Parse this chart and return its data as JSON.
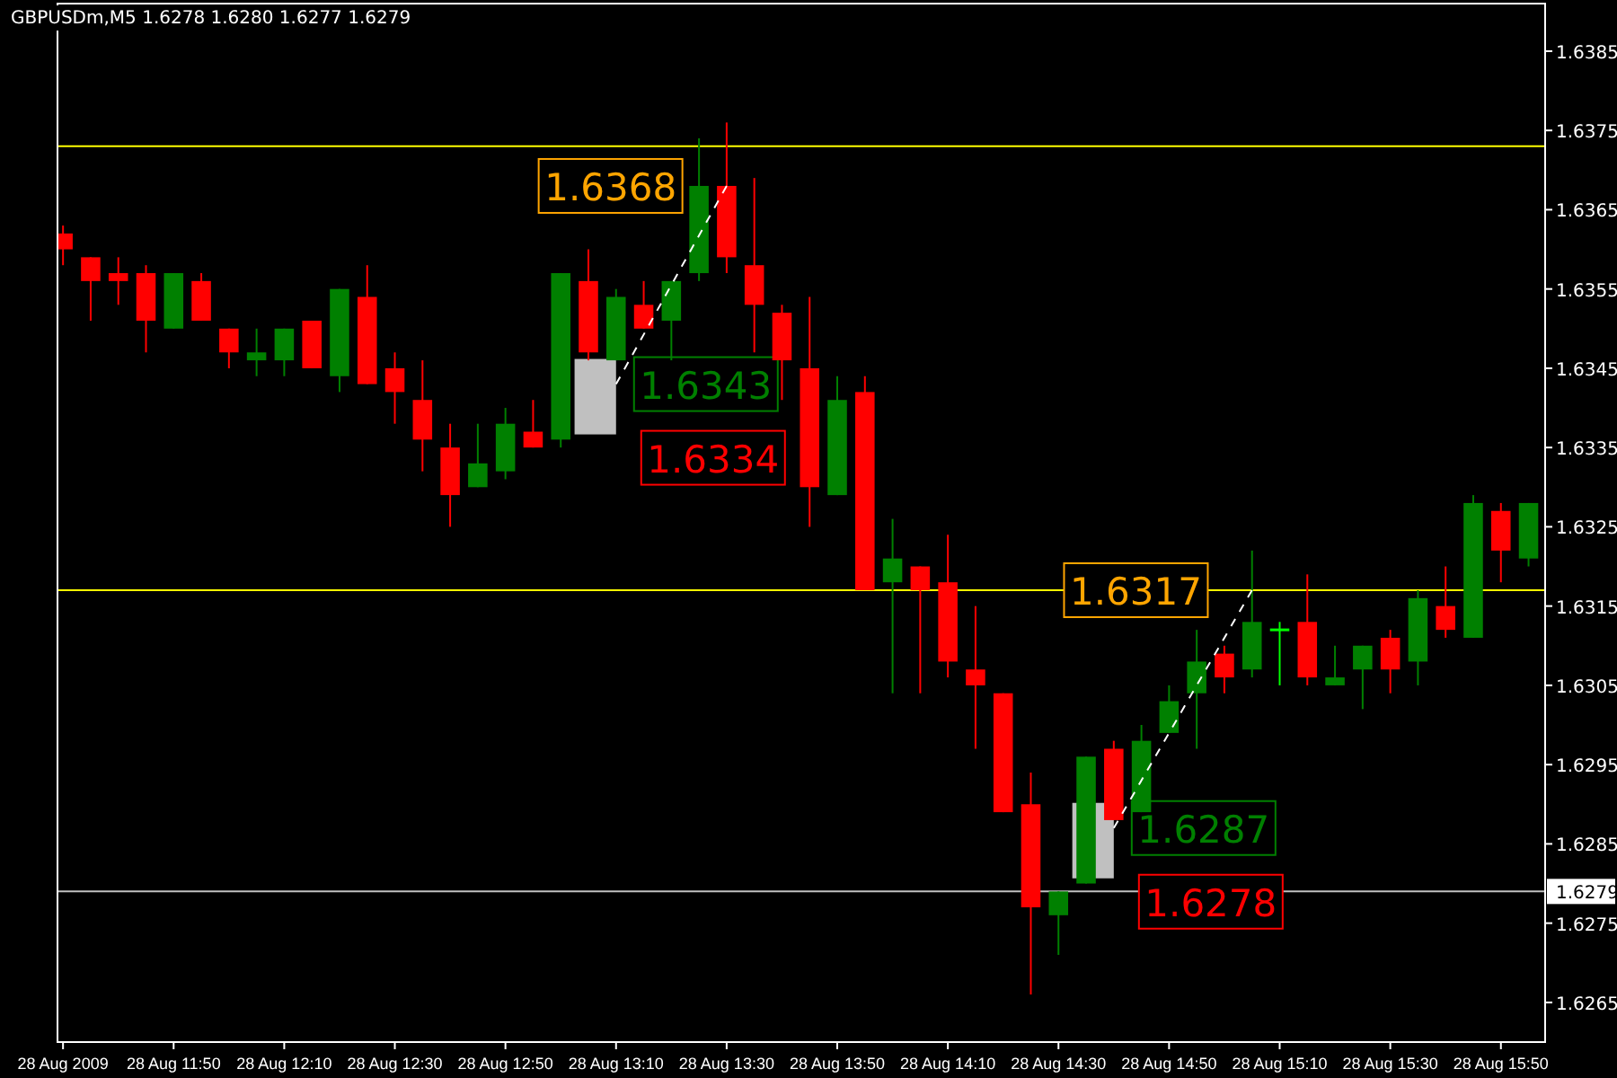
{
  "chart_data": {
    "type": "candlestick",
    "title": "GBPUSDm,M5  1.6278 1.6280 1.6277 1.6279",
    "x": [
      "2009-08-28T11:30",
      "2009-08-28T11:35",
      "2009-08-28T11:40",
      "2009-08-28T11:45",
      "2009-08-28T11:50",
      "2009-08-28T11:55",
      "2009-08-28T12:00",
      "2009-08-28T12:05",
      "2009-08-28T12:10",
      "2009-08-28T12:15",
      "2009-08-28T12:20",
      "2009-08-28T12:25",
      "2009-08-28T12:30",
      "2009-08-28T12:35",
      "2009-08-28T12:40",
      "2009-08-28T12:45",
      "2009-08-28T12:50",
      "2009-08-28T12:55",
      "2009-08-28T13:00",
      "2009-08-28T13:05",
      "2009-08-28T13:10",
      "2009-08-28T13:15",
      "2009-08-28T13:20",
      "2009-08-28T13:25",
      "2009-08-28T13:30",
      "2009-08-28T13:35",
      "2009-08-28T13:40",
      "2009-08-28T13:45",
      "2009-08-28T13:50",
      "2009-08-28T13:55",
      "2009-08-28T14:00",
      "2009-08-28T14:05",
      "2009-08-28T14:10",
      "2009-08-28T14:15",
      "2009-08-28T14:20",
      "2009-08-28T14:25",
      "2009-08-28T14:30",
      "2009-08-28T14:35",
      "2009-08-28T14:40",
      "2009-08-28T14:45",
      "2009-08-28T14:50",
      "2009-08-28T14:55",
      "2009-08-28T15:00",
      "2009-08-28T15:05",
      "2009-08-28T15:10",
      "2009-08-28T15:15",
      "2009-08-28T15:20",
      "2009-08-28T15:25",
      "2009-08-28T15:30",
      "2009-08-28T15:35",
      "2009-08-28T15:40",
      "2009-08-28T15:45",
      "2009-08-28T15:50",
      "2009-08-28T15:55"
    ],
    "ohlc": [
      [
        1.6362,
        1.6363,
        1.6358,
        1.636
      ],
      [
        1.6359,
        1.6359,
        1.6351,
        1.6356
      ],
      [
        1.6357,
        1.6359,
        1.6353,
        1.6356
      ],
      [
        1.6357,
        1.6358,
        1.6347,
        1.6351
      ],
      [
        1.635,
        1.6357,
        1.635,
        1.6357
      ],
      [
        1.6356,
        1.6357,
        1.6351,
        1.6351
      ],
      [
        1.635,
        1.635,
        1.6345,
        1.6347
      ],
      [
        1.6346,
        1.635,
        1.6344,
        1.6347
      ],
      [
        1.6346,
        1.635,
        1.6344,
        1.635
      ],
      [
        1.6351,
        1.6351,
        1.6345,
        1.6345
      ],
      [
        1.6344,
        1.6355,
        1.6342,
        1.6355
      ],
      [
        1.6354,
        1.6358,
        1.6343,
        1.6343
      ],
      [
        1.6345,
        1.6347,
        1.6338,
        1.6342
      ],
      [
        1.6341,
        1.6346,
        1.6332,
        1.6336
      ],
      [
        1.6335,
        1.6338,
        1.6325,
        1.6329
      ],
      [
        1.633,
        1.6338,
        1.633,
        1.6333
      ],
      [
        1.6332,
        1.634,
        1.6331,
        1.6338
      ],
      [
        1.6337,
        1.6341,
        1.6335,
        1.6335
      ],
      [
        1.6336,
        1.6357,
        1.6335,
        1.6357
      ],
      [
        1.6356,
        1.636,
        1.6346,
        1.6347
      ],
      [
        1.6346,
        1.6355,
        1.6346,
        1.6354
      ],
      [
        1.6353,
        1.6356,
        1.635,
        1.635
      ],
      [
        1.6351,
        1.6356,
        1.6346,
        1.6356
      ],
      [
        1.6357,
        1.6374,
        1.6356,
        1.6368
      ],
      [
        1.6368,
        1.6376,
        1.6357,
        1.6359
      ],
      [
        1.6358,
        1.6369,
        1.6347,
        1.6353
      ],
      [
        1.6352,
        1.6353,
        1.6341,
        1.6346
      ],
      [
        1.6345,
        1.6354,
        1.6325,
        1.633
      ],
      [
        1.6329,
        1.6344,
        1.6329,
        1.6341
      ],
      [
        1.6342,
        1.6344,
        1.6317,
        1.6317
      ],
      [
        1.6318,
        1.6326,
        1.6304,
        1.6321
      ],
      [
        1.632,
        1.632,
        1.6304,
        1.6317
      ],
      [
        1.6318,
        1.6324,
        1.6306,
        1.6308
      ],
      [
        1.6307,
        1.6315,
        1.6297,
        1.6305
      ],
      [
        1.6304,
        1.6304,
        1.6289,
        1.6289
      ],
      [
        1.629,
        1.6294,
        1.6266,
        1.6277
      ],
      [
        1.6276,
        1.6279,
        1.6271,
        1.6279
      ],
      [
        1.628,
        1.6296,
        1.628,
        1.6296
      ],
      [
        1.6297,
        1.6298,
        1.6288,
        1.6288
      ],
      [
        1.6289,
        1.63,
        1.6289,
        1.6298
      ],
      [
        1.6299,
        1.6305,
        1.6299,
        1.6303
      ],
      [
        1.6304,
        1.6312,
        1.6297,
        1.6308
      ],
      [
        1.6309,
        1.631,
        1.6304,
        1.6306
      ],
      [
        1.6307,
        1.6322,
        1.6306,
        1.6313
      ],
      [
        1.6312,
        1.6313,
        1.6305,
        1.6312
      ],
      [
        1.6313,
        1.6319,
        1.6305,
        1.6306
      ],
      [
        1.6305,
        1.631,
        1.6305,
        1.6306
      ],
      [
        1.6307,
        1.631,
        1.6302,
        1.631
      ],
      [
        1.6311,
        1.6312,
        1.6304,
        1.6307
      ],
      [
        1.6308,
        1.6317,
        1.6305,
        1.6316
      ],
      [
        1.6315,
        1.632,
        1.6311,
        1.6312
      ],
      [
        1.6311,
        1.6329,
        1.6311,
        1.6328
      ],
      [
        1.6327,
        1.6328,
        1.6318,
        1.6322
      ],
      [
        1.6321,
        1.6328,
        1.632,
        1.6328
      ]
    ],
    "colors": [
      "#ff0000",
      "#ff0000",
      "#ff0000",
      "#ff0000",
      "#008000",
      "#ff0000",
      "#ff0000",
      "#008000",
      "#008000",
      "#ff0000",
      "#008000",
      "#ff0000",
      "#ff0000",
      "#ff0000",
      "#ff0000",
      "#008000",
      "#008000",
      "#ff0000",
      "#008000",
      "#ff0000",
      "#008000",
      "#ff0000",
      "#008000",
      "#008000",
      "#ff0000",
      "#ff0000",
      "#ff0000",
      "#ff0000",
      "#008000",
      "#ff0000",
      "#008000",
      "#ff0000",
      "#ff0000",
      "#ff0000",
      "#ff0000",
      "#ff0000",
      "#008000",
      "#008000",
      "#ff0000",
      "#008000",
      "#008000",
      "#008000",
      "#ff0000",
      "#008000",
      "#00ff00",
      "#ff0000",
      "#008000",
      "#008000",
      "#ff0000",
      "#008000",
      "#ff0000",
      "#008000",
      "#ff0000",
      "#008000"
    ],
    "series": [
      {
        "type": "line",
        "x": [
          "2009-08-28T13:10",
          "2009-08-28T13:30"
        ],
        "values": [
          1.6343,
          1.6368
        ],
        "color": "#ffffff",
        "line_style": "dashed"
      },
      {
        "type": "line",
        "x": [
          "2009-08-28T14:40",
          "2009-08-28T15:05"
        ],
        "values": [
          1.6287,
          1.6317
        ],
        "color": "#ffffff",
        "line_style": "dashed"
      }
    ],
    "annotations": [
      {
        "text": "1.6368",
        "x": "2009-08-28T13:30",
        "y": 1.6368
      },
      {
        "text": "1.6343",
        "x": "2009-08-28T13:10",
        "y": 1.6343
      },
      "1.6334",
      {
        "text": "1.6317",
        "x": "2009-08-28T15:05",
        "y": 1.6317
      },
      {
        "text": "1.6287",
        "x": "2009-08-28T14:40",
        "y": 1.6287
      },
      "1.6278"
    ],
    "ref_lines": [
      {
        "axis": "y",
        "value": 1.6373,
        "color": "#ffff00"
      },
      {
        "axis": "y",
        "value": 1.6317,
        "color": "#ffff00"
      },
      {
        "axis": "y",
        "value": 1.6279,
        "label": "1.6279",
        "color": "#c0c0c0"
      }
    ],
    "xlim": [
      "2009-08-28T11:29",
      "2009-08-28T15:58"
    ],
    "xticks": [
      {
        "value": "2009-08-28T11:30",
        "label": "28 Aug 2009"
      },
      {
        "value": "2009-08-28T11:50",
        "label": "28 Aug 11:50"
      },
      {
        "value": "2009-08-28T12:10",
        "label": "28 Aug 12:10"
      },
      {
        "value": "2009-08-28T12:30",
        "label": "28 Aug 12:30"
      },
      {
        "value": "2009-08-28T12:50",
        "label": "28 Aug 12:50"
      },
      {
        "value": "2009-08-28T13:10",
        "label": "28 Aug 13:10"
      },
      {
        "value": "2009-08-28T13:30",
        "label": "28 Aug 13:30"
      },
      {
        "value": "2009-08-28T13:50",
        "label": "28 Aug 13:50"
      },
      {
        "value": "2009-08-28T14:10",
        "label": "28 Aug 14:10"
      },
      {
        "value": "2009-08-28T14:30",
        "label": "28 Aug 14:30"
      },
      {
        "value": "2009-08-28T14:50",
        "label": "28 Aug 14:50"
      },
      {
        "value": "2009-08-28T15:10",
        "label": "28 Aug 15:10"
      },
      {
        "value": "2009-08-28T15:30",
        "label": "28 Aug 15:30"
      },
      {
        "value": "2009-08-28T15:50",
        "label": "28 Aug 15:50"
      }
    ],
    "ylim": [
      1.626,
      1.6391
    ],
    "yticks": [
      {
        "value": 1.6265,
        "label": "1.6265"
      },
      {
        "value": 1.6275,
        "label": "1.6275"
      },
      {
        "value": 1.6285,
        "label": "1.6285"
      },
      {
        "value": 1.6295,
        "label": "1.6295"
      },
      {
        "value": 1.6305,
        "label": "1.6305"
      },
      {
        "value": 1.6315,
        "label": "1.6315"
      },
      {
        "value": 1.6325,
        "label": "1.6325"
      },
      {
        "value": 1.6335,
        "label": "1.6335"
      },
      {
        "value": 1.6345,
        "label": "1.6345"
      },
      {
        "value": 1.6355,
        "label": "1.6355"
      },
      {
        "value": 1.6365,
        "label": "1.6365"
      },
      {
        "value": 1.6375,
        "label": "1.6375"
      },
      {
        "value": 1.6385,
        "label": "1.6385"
      }
    ],
    "grid": false
  }
}
